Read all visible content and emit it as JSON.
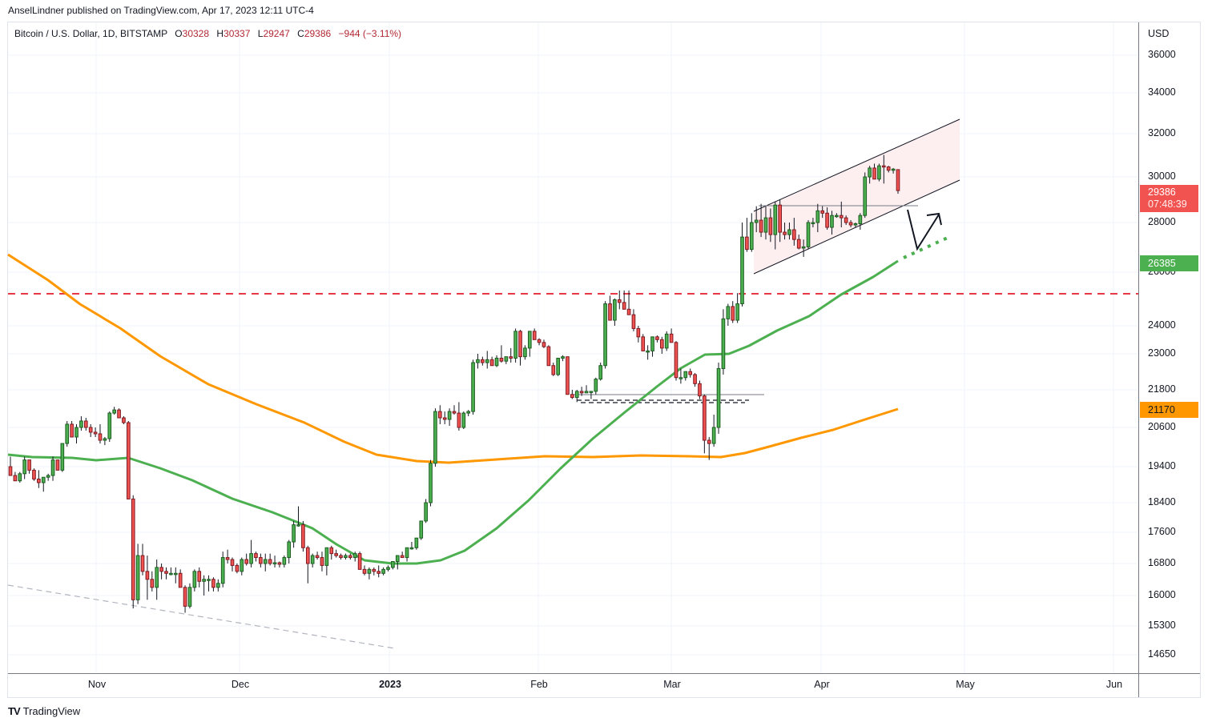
{
  "header": {
    "publisher_line": "AnselLindner published on TradingView.com, Apr 17, 2023 12:11 UTC-4"
  },
  "legend": {
    "symbol": "Bitcoin / U.S. Dollar, 1D, BITSTAMP",
    "open_label": "O",
    "open": "30328",
    "high_label": "H",
    "high": "30337",
    "low_label": "L",
    "low": "29247",
    "close_label": "C",
    "close": "29386",
    "change": "−944 (−3.11%)"
  },
  "price_axis": {
    "currency": "USD",
    "ticks": [
      "36000",
      "34000",
      "32000",
      "30000",
      "28000",
      "26000",
      "24000",
      "23000",
      "21800",
      "20600",
      "19400",
      "18400",
      "17600",
      "16800",
      "16000",
      "15300",
      "14650"
    ],
    "last_price_tag": {
      "value": "29386",
      "countdown": "07:48:39",
      "color": "#f05350"
    },
    "ma_fast_tag": {
      "value": "26385",
      "color": "#4caf50"
    },
    "ma_slow_tag": {
      "value": "21170",
      "color": "#ff9800"
    }
  },
  "time_axis": {
    "labels": [
      "Nov",
      "Dec",
      "2023",
      "Feb",
      "Mar",
      "Apr",
      "May",
      "Jun"
    ]
  },
  "footer": {
    "logo_glyph": "TV",
    "brand": "TradingView"
  },
  "colors": {
    "up": "#4caf50",
    "up_border": "#1b5e20",
    "down": "#f05350",
    "down_border": "#801922",
    "ma_fast": "#4caf50",
    "ma_slow": "#ff9800",
    "resistance": "#e53945",
    "channel_fill": "#fdeef0"
  },
  "chart_data": {
    "type": "candlestick",
    "title": "Bitcoin / U.S. Dollar, 1D, BITSTAMP",
    "xlabel": "",
    "ylabel": "USD",
    "x_range": [
      "2022-10-14",
      "2023-06-10"
    ],
    "ylim": [
      14400,
      37000
    ],
    "y_scale": "log",
    "grid": true,
    "last": {
      "open": 30328,
      "high": 30337,
      "low": 29247,
      "close": 29386,
      "change": -944,
      "change_pct": -3.11
    },
    "candles_ohlc": [
      [
        19400,
        19700,
        19150,
        19150
      ],
      [
        19150,
        19250,
        19000,
        19000
      ],
      [
        19000,
        19250,
        18950,
        19200
      ],
      [
        19200,
        19700,
        19050,
        19600
      ],
      [
        19600,
        19600,
        19200,
        19300
      ],
      [
        19300,
        19350,
        19000,
        19050
      ],
      [
        19050,
        19300,
        18800,
        18950
      ],
      [
        18950,
        19100,
        18700,
        19100
      ],
      [
        19100,
        19200,
        19000,
        19150
      ],
      [
        19150,
        19700,
        19000,
        19600
      ],
      [
        19600,
        19600,
        19300,
        19300
      ],
      [
        19300,
        20100,
        19250,
        20100
      ],
      [
        20100,
        20800,
        20000,
        20700
      ],
      [
        20700,
        20800,
        20300,
        20300
      ],
      [
        20300,
        20700,
        20100,
        20600
      ],
      [
        20600,
        20950,
        20500,
        20800
      ],
      [
        20800,
        20900,
        20500,
        20600
      ],
      [
        20600,
        20700,
        20300,
        20450
      ],
      [
        20450,
        20600,
        20300,
        20400
      ],
      [
        20400,
        20700,
        20100,
        20200
      ],
      [
        20200,
        20300,
        20050,
        20250
      ],
      [
        20250,
        21100,
        20150,
        21050
      ],
      [
        21050,
        21250,
        21000,
        21150
      ],
      [
        21150,
        21200,
        20900,
        20900
      ],
      [
        20900,
        20950,
        20700,
        20750
      ],
      [
        20750,
        20800,
        18500,
        18500
      ],
      [
        18500,
        18600,
        15700,
        15900
      ],
      [
        15900,
        17300,
        15800,
        17000
      ],
      [
        17000,
        17300,
        16500,
        16600
      ],
      [
        16600,
        17000,
        15900,
        16400
      ],
      [
        16400,
        16600,
        16100,
        16200
      ],
      [
        16200,
        16900,
        15900,
        16700
      ],
      [
        16700,
        16800,
        16400,
        16600
      ],
      [
        16600,
        16700,
        16400,
        16550
      ],
      [
        16550,
        16700,
        16500,
        16550
      ],
      [
        16550,
        16700,
        16300,
        16550
      ],
      [
        16550,
        16650,
        16200,
        16200
      ],
      [
        16200,
        16250,
        15600,
        15750
      ],
      [
        15750,
        16300,
        15700,
        16200
      ],
      [
        16200,
        16650,
        16100,
        16600
      ],
      [
        16600,
        16700,
        16200,
        16350
      ],
      [
        16350,
        16500,
        16000,
        16400
      ],
      [
        16400,
        16500,
        16100,
        16400
      ],
      [
        16400,
        16450,
        16100,
        16200
      ],
      [
        16200,
        16400,
        16100,
        16300
      ],
      [
        16300,
        17100,
        16200,
        16950
      ],
      [
        16950,
        17150,
        16800,
        16900
      ],
      [
        16900,
        16950,
        16600,
        16750
      ],
      [
        16750,
        16800,
        16550,
        16600
      ],
      [
        16600,
        16950,
        16500,
        16900
      ],
      [
        16900,
        17050,
        16750,
        16800
      ],
      [
        16800,
        17400,
        16700,
        17050
      ],
      [
        17050,
        17100,
        16850,
        16950
      ],
      [
        16950,
        17050,
        16700,
        16800
      ],
      [
        16800,
        17050,
        16600,
        16900
      ],
      [
        16900,
        17050,
        16750,
        16800
      ],
      [
        16800,
        17000,
        16700,
        16820
      ],
      [
        16820,
        16850,
        16700,
        16780
      ],
      [
        16780,
        17000,
        16700,
        16950
      ],
      [
        16950,
        17400,
        16800,
        17350
      ],
      [
        17350,
        17900,
        17200,
        17800
      ],
      [
        17800,
        18300,
        17750,
        17800
      ],
      [
        17800,
        17900,
        17100,
        17200
      ],
      [
        17200,
        17250,
        16300,
        16800
      ],
      [
        16800,
        17050,
        16700,
        17000
      ],
      [
        17000,
        17100,
        16900,
        16950
      ],
      [
        16950,
        17100,
        16600,
        16750
      ],
      [
        16750,
        17200,
        16500,
        17200
      ],
      [
        17200,
        17250,
        16900,
        17050
      ],
      [
        17050,
        17150,
        16950,
        17000
      ],
      [
        17000,
        17050,
        16900,
        16950
      ],
      [
        16950,
        17050,
        16900,
        17000
      ],
      [
        17000,
        17050,
        16900,
        16950
      ],
      [
        16950,
        17100,
        16850,
        17050
      ],
      [
        17050,
        17100,
        16900,
        16650
      ],
      [
        16650,
        16750,
        16500,
        16550
      ],
      [
        16550,
        16700,
        16400,
        16650
      ],
      [
        16650,
        16700,
        16500,
        16600
      ],
      [
        16600,
        16750,
        16450,
        16550
      ],
      [
        16550,
        16700,
        16500,
        16650
      ],
      [
        16650,
        16750,
        16600,
        16700
      ],
      [
        16700,
        16850,
        16650,
        16850
      ],
      [
        16850,
        17000,
        16650,
        17000
      ],
      [
        17000,
        17100,
        16950,
        16950
      ],
      [
        16950,
        17200,
        16850,
        17200
      ],
      [
        17200,
        17350,
        17150,
        17200
      ],
      [
        17200,
        17450,
        17150,
        17450
      ],
      [
        17450,
        17550,
        17400,
        17900
      ],
      [
        17900,
        18500,
        17850,
        18400
      ],
      [
        18400,
        19600,
        18300,
        19500
      ],
      [
        19500,
        21200,
        19400,
        21100
      ],
      [
        21100,
        21300,
        20700,
        20900
      ],
      [
        20900,
        21100,
        20700,
        20850
      ],
      [
        20850,
        21200,
        20650,
        21100
      ],
      [
        21100,
        21300,
        21000,
        21050
      ],
      [
        21050,
        21400,
        20500,
        20600
      ],
      [
        20600,
        21100,
        20550,
        21050
      ],
      [
        21050,
        21150,
        20950,
        21100
      ],
      [
        21100,
        22800,
        21000,
        22700
      ],
      [
        22700,
        23000,
        22500,
        22800
      ],
      [
        22800,
        22900,
        22600,
        22700
      ],
      [
        22700,
        23100,
        22500,
        22800
      ],
      [
        22800,
        22900,
        22600,
        22600
      ],
      [
        22600,
        22950,
        22550,
        22850
      ],
      [
        22850,
        23300,
        22700,
        22750
      ],
      [
        22750,
        22900,
        22650,
        22900
      ],
      [
        22900,
        23200,
        22700,
        22850
      ],
      [
        22850,
        23900,
        22700,
        23800
      ],
      [
        23800,
        23850,
        22600,
        22900
      ],
      [
        22900,
        23300,
        22800,
        23200
      ],
      [
        23200,
        23700,
        22900,
        23800
      ],
      [
        23800,
        23900,
        23500,
        23500
      ],
      [
        23500,
        23550,
        23300,
        23400
      ],
      [
        23400,
        23500,
        23200,
        23250
      ],
      [
        23250,
        23300,
        22800,
        22600
      ],
      [
        22600,
        22700,
        22250,
        22300
      ],
      [
        22300,
        22800,
        22250,
        22850
      ],
      [
        22850,
        22950,
        22750,
        22900
      ],
      [
        22900,
        22900,
        21650,
        21650
      ],
      [
        21650,
        21800,
        21500,
        21550
      ],
      [
        21550,
        21800,
        21400,
        21750
      ],
      [
        21750,
        21900,
        21600,
        21700
      ],
      [
        21700,
        21950,
        21700,
        21750
      ],
      [
        21750,
        21750,
        21500,
        21750
      ],
      [
        21750,
        22200,
        21650,
        22150
      ],
      [
        22150,
        22700,
        22100,
        22600
      ],
      [
        22600,
        24900,
        22500,
        24800
      ],
      [
        24800,
        25100,
        24300,
        24200
      ],
      [
        24200,
        25000,
        24000,
        24950
      ],
      [
        24950,
        25300,
        24600,
        24850
      ],
      [
        24850,
        25300,
        24750,
        24600
      ],
      [
        24600,
        25300,
        24400,
        24400
      ],
      [
        24400,
        24600,
        23800,
        23900
      ],
      [
        23900,
        24000,
        23400,
        23600
      ],
      [
        23600,
        23700,
        23100,
        23100
      ],
      [
        23100,
        23300,
        22800,
        23100
      ],
      [
        23100,
        23500,
        22900,
        23600
      ],
      [
        23600,
        23650,
        23400,
        23500
      ],
      [
        23500,
        23600,
        23000,
        23200
      ],
      [
        23200,
        23800,
        23100,
        23700
      ],
      [
        23700,
        23900,
        23400,
        23400
      ],
      [
        23400,
        23450,
        22100,
        22200
      ],
      [
        22200,
        22500,
        22000,
        22200
      ],
      [
        22200,
        22400,
        22100,
        22400
      ],
      [
        22400,
        22500,
        22200,
        22300
      ],
      [
        22300,
        22350,
        21900,
        22000
      ],
      [
        22000,
        22100,
        21500,
        21600
      ],
      [
        21600,
        21650,
        19800,
        20200
      ],
      [
        20200,
        20300,
        19600,
        20100
      ],
      [
        20100,
        21000,
        20000,
        20600
      ],
      [
        20600,
        22700,
        20400,
        22500
      ],
      [
        22500,
        24600,
        22300,
        24250
      ],
      [
        24250,
        24800,
        24000,
        24700
      ],
      [
        24700,
        24900,
        24100,
        24200
      ],
      [
        24200,
        25200,
        24100,
        24800
      ],
      [
        24800,
        28000,
        24700,
        27400
      ],
      [
        27400,
        28200,
        26800,
        26900
      ],
      [
        26900,
        28400,
        26800,
        28000
      ],
      [
        28000,
        28700,
        27600,
        28100
      ],
      [
        28100,
        28800,
        27400,
        27600
      ],
      [
        27600,
        28700,
        27300,
        28200
      ],
      [
        28200,
        28600,
        27200,
        27500
      ],
      [
        27500,
        28900,
        26900,
        28750
      ],
      [
        28750,
        29000,
        27200,
        27600
      ],
      [
        27600,
        28000,
        27300,
        27500
      ],
      [
        27500,
        28000,
        27300,
        27700
      ],
      [
        27700,
        28200,
        27050,
        27300
      ],
      [
        27300,
        27500,
        26900,
        26950
      ],
      [
        26950,
        27300,
        26600,
        27000
      ],
      [
        27000,
        28100,
        26900,
        28000
      ],
      [
        28000,
        28200,
        27800,
        28000
      ],
      [
        28000,
        28800,
        27600,
        28500
      ],
      [
        28500,
        28700,
        28200,
        28400
      ],
      [
        28400,
        28650,
        27700,
        27800
      ],
      [
        27800,
        28500,
        27500,
        28300
      ],
      [
        28300,
        28400,
        28200,
        28300
      ],
      [
        28300,
        28900,
        27800,
        28200
      ],
      [
        28200,
        28300,
        27900,
        28000
      ],
      [
        28000,
        28100,
        27800,
        27900
      ],
      [
        27900,
        28000,
        27800,
        27950
      ],
      [
        27950,
        28400,
        27700,
        28300
      ],
      [
        28300,
        30200,
        28200,
        30000
      ],
      [
        30000,
        30500,
        29700,
        30400
      ],
      [
        30400,
        30600,
        29900,
        29900
      ],
      [
        29900,
        30600,
        29800,
        30500
      ],
      [
        30500,
        31000,
        29700,
        30450
      ],
      [
        30450,
        30500,
        30200,
        30300
      ],
      [
        30300,
        30400,
        30150,
        30350
      ],
      [
        30328,
        30337,
        29247,
        29386
      ]
    ],
    "moving_averages": [
      {
        "name": "MA (fast, green)",
        "color": "#4caf50",
        "last_value": 26385
      },
      {
        "name": "MA (slow, orange)",
        "color": "#ff9800",
        "last_value": 21170
      }
    ],
    "annotations": [
      {
        "type": "horizontal_dashed",
        "label": "resistance",
        "color": "#e53945",
        "price": 25250
      },
      {
        "type": "ascending_channel",
        "from": "2023-03-18",
        "to": "2023-04-30",
        "lower_start": 25900,
        "lower_end": 29800,
        "upper_start": 28400,
        "upper_end": 32700
      },
      {
        "type": "horizontal_line",
        "price": 28700
      },
      {
        "type": "horizontal_line",
        "price": 21750
      },
      {
        "type": "horizontal_dashed_double",
        "price": 21500
      },
      {
        "type": "arrow_projection",
        "path": "dip to ~27000 then up to ~28400"
      },
      {
        "type": "trendline_dashed_gray",
        "from_price": 16200,
        "to_price": 14800
      }
    ]
  }
}
